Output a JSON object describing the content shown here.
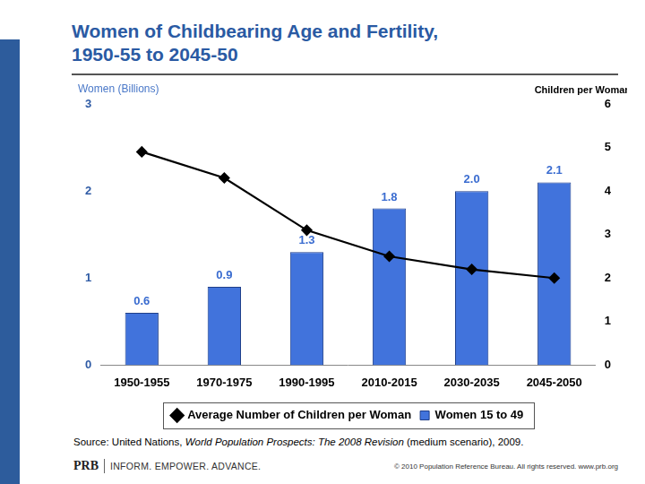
{
  "chart_data": {
    "type": "bar",
    "title": [
      "Women of Childbearing Age and Fertility,",
      "1950-55 to 2045-50"
    ],
    "categories": [
      "1950-1955",
      "1970-1975",
      "1990-1995",
      "2010-2015",
      "2030-2035",
      "2045-2050"
    ],
    "series": [
      {
        "name": "Women 15 to 49",
        "type": "bar",
        "color": "#4173dc",
        "axis": "y",
        "values": [
          0.6,
          0.9,
          1.3,
          1.8,
          2.0,
          2.1
        ],
        "value_labels": [
          "0.6",
          "0.9",
          "1.3",
          "1.8",
          "2.0",
          "2.1"
        ]
      },
      {
        "name": "Average Number of Children per Woman",
        "type": "line",
        "color": "#000000",
        "axis": "y2",
        "marker": "diamond",
        "line_style": "solid",
        "values": [
          4.9,
          4.3,
          3.1,
          2.5,
          2.2,
          2.0
        ]
      }
    ],
    "ylabel": "Women (Billions)",
    "y2label": "Children per Woman",
    "ylim": [
      0,
      3
    ],
    "yticks": [
      0,
      1,
      2,
      3
    ],
    "y2lim": [
      0,
      6
    ],
    "y2ticks": [
      0,
      1,
      2,
      3,
      4,
      5,
      6
    ],
    "grid": false,
    "legend": "bottom",
    "data_labels": true
  },
  "source": [
    {
      "text": "Source: United Nations, "
    },
    {
      "text": "World Population Prospects: The 2008 Revision",
      "italic": true
    },
    {
      "text": " (medium scenario), 2009."
    }
  ],
  "footer": {
    "brand": "PRB",
    "tagline": "INFORM. EMPOWER. ADVANCE.",
    "copyright": "© 2010 Population Reference Bureau. All rights reserved. www.prb.org"
  }
}
